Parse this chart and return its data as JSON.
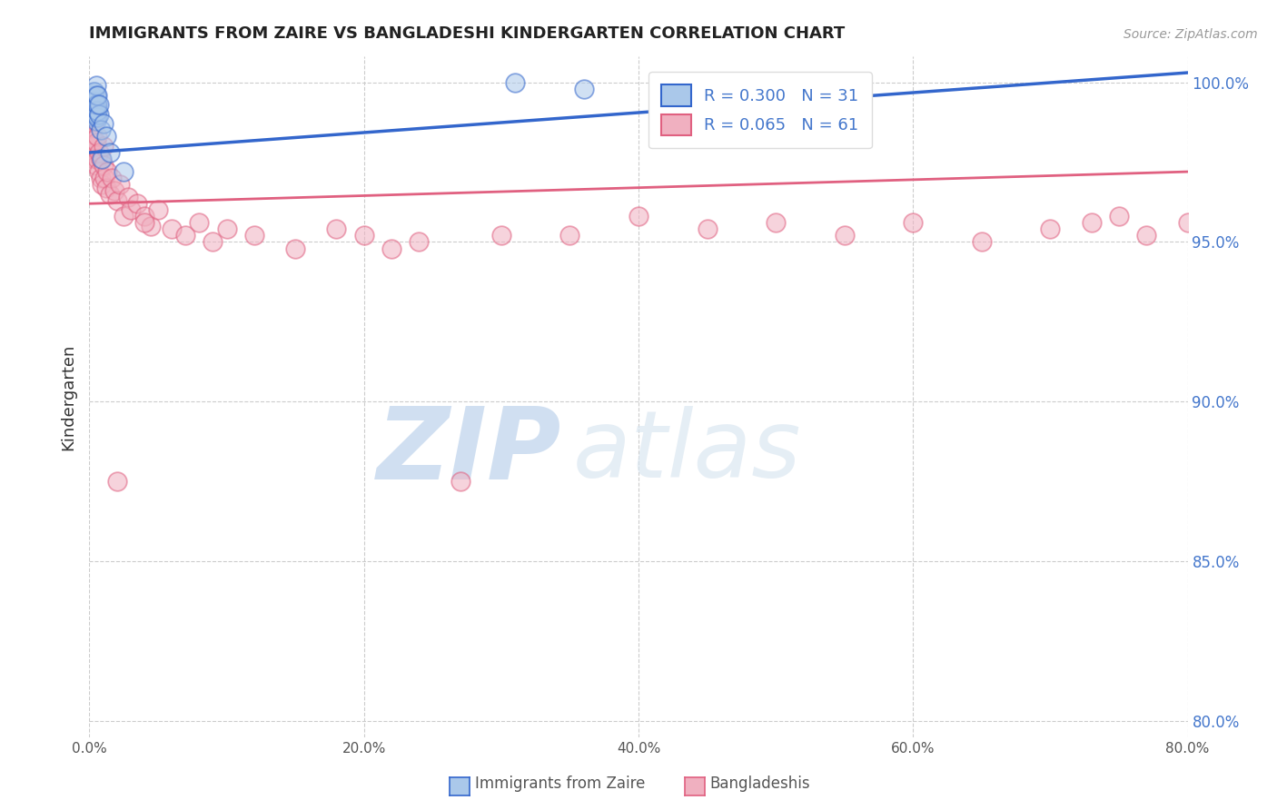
{
  "title": "IMMIGRANTS FROM ZAIRE VS BANGLADESHI KINDERGARTEN CORRELATION CHART",
  "source_text": "Source: ZipAtlas.com",
  "ylabel": "Kindergarten",
  "xlim": [
    0.0,
    0.8
  ],
  "ylim": [
    0.795,
    1.008
  ],
  "xtick_labels": [
    "0.0%",
    "20.0%",
    "40.0%",
    "60.0%",
    "80.0%"
  ],
  "xtick_vals": [
    0.0,
    0.2,
    0.4,
    0.6,
    0.8
  ],
  "ytick_labels": [
    "80.0%",
    "85.0%",
    "90.0%",
    "95.0%",
    "100.0%"
  ],
  "ytick_vals": [
    0.8,
    0.85,
    0.9,
    0.95,
    1.0
  ],
  "legend_label1": "Immigrants from Zaire",
  "legend_label2": "Bangladeshis",
  "R1": 0.3,
  "N1": 31,
  "R2": 0.065,
  "N2": 61,
  "color1": "#aac8ea",
  "color2": "#f0b0c0",
  "trendline_color1": "#3366cc",
  "trendline_color2": "#e06080",
  "title_color": "#222222",
  "axis_label_color": "#333333",
  "tick_color_right": "#4477cc",
  "grid_color": "#cccccc",
  "background_color": "#ffffff",
  "blue_points_x": [
    0.001,
    0.002,
    0.002,
    0.002,
    0.003,
    0.003,
    0.003,
    0.003,
    0.004,
    0.004,
    0.004,
    0.004,
    0.005,
    0.005,
    0.005,
    0.005,
    0.005,
    0.006,
    0.006,
    0.006,
    0.006,
    0.007,
    0.007,
    0.008,
    0.009,
    0.01,
    0.012,
    0.015,
    0.025,
    0.31,
    0.36
  ],
  "blue_points_y": [
    0.993,
    0.991,
    0.993,
    0.996,
    0.99,
    0.992,
    0.994,
    0.997,
    0.989,
    0.991,
    0.994,
    0.997,
    0.988,
    0.99,
    0.993,
    0.996,
    0.999,
    0.989,
    0.991,
    0.993,
    0.996,
    0.99,
    0.993,
    0.985,
    0.976,
    0.987,
    0.983,
    0.978,
    0.972,
    1.0,
    0.998
  ],
  "pink_points_x": [
    0.001,
    0.002,
    0.002,
    0.003,
    0.003,
    0.004,
    0.004,
    0.004,
    0.005,
    0.005,
    0.006,
    0.006,
    0.007,
    0.007,
    0.008,
    0.008,
    0.009,
    0.01,
    0.01,
    0.011,
    0.012,
    0.013,
    0.015,
    0.016,
    0.018,
    0.02,
    0.022,
    0.025,
    0.028,
    0.03,
    0.035,
    0.04,
    0.045,
    0.05,
    0.06,
    0.07,
    0.08,
    0.09,
    0.1,
    0.12,
    0.15,
    0.18,
    0.2,
    0.22,
    0.24,
    0.27,
    0.3,
    0.04,
    0.35,
    0.4,
    0.45,
    0.5,
    0.55,
    0.6,
    0.65,
    0.7,
    0.73,
    0.75,
    0.77,
    0.8,
    0.02
  ],
  "pink_points_y": [
    0.982,
    0.978,
    0.984,
    0.98,
    0.986,
    0.976,
    0.982,
    0.988,
    0.974,
    0.981,
    0.976,
    0.983,
    0.972,
    0.978,
    0.97,
    0.976,
    0.968,
    0.974,
    0.98,
    0.97,
    0.967,
    0.972,
    0.965,
    0.97,
    0.966,
    0.963,
    0.968,
    0.958,
    0.964,
    0.96,
    0.962,
    0.958,
    0.955,
    0.96,
    0.954,
    0.952,
    0.956,
    0.95,
    0.954,
    0.952,
    0.948,
    0.954,
    0.952,
    0.948,
    0.95,
    0.875,
    0.952,
    0.956,
    0.952,
    0.958,
    0.954,
    0.956,
    0.952,
    0.956,
    0.95,
    0.954,
    0.956,
    0.958,
    0.952,
    0.956,
    0.875
  ],
  "blue_trend_x": [
    0.0,
    0.8
  ],
  "blue_trend_y": [
    0.978,
    1.003
  ],
  "pink_trend_x": [
    0.0,
    0.8
  ],
  "pink_trend_y": [
    0.962,
    0.972
  ]
}
